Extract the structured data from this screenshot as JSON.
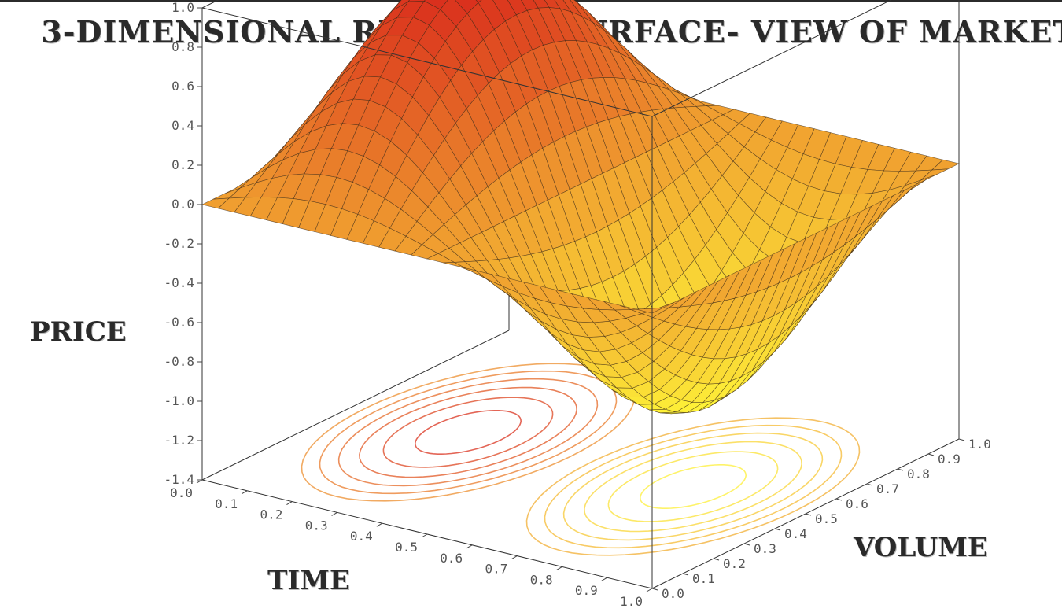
{
  "chart_data": {
    "type": "surface",
    "title": "3-DIMENSIONAL RESPONSE SURFACE- VIEW OF MARKET",
    "xlabel": "TIME",
    "ylabel": "VOLUME",
    "zlabel": "PRICE",
    "xlim": [
      0.0,
      1.0
    ],
    "ylim": [
      0.0,
      1.0
    ],
    "zlim": [
      -1.4,
      1.0
    ],
    "x_ticks": [
      "0.0",
      "0.1",
      "0.2",
      "0.3",
      "0.4",
      "0.5",
      "0.6",
      "0.7",
      "0.8",
      "0.9",
      "1.0"
    ],
    "y_ticks": [
      "0.0",
      "0.1",
      "0.2",
      "0.3",
      "0.4",
      "0.5",
      "0.6",
      "0.7",
      "0.8",
      "0.9",
      "1.0"
    ],
    "z_ticks": [
      "1.0",
      "0.8",
      "0.6",
      "0.4",
      "0.2",
      "0.0",
      "-0.2",
      "-0.4",
      "-0.6",
      "-0.8",
      "-1.0",
      "-1.2",
      "-1.4"
    ],
    "surface": {
      "function": "z = sin(2*pi*x) * sin(pi*y)",
      "grid_x_steps": 28,
      "grid_y_steps": 28,
      "peak": {
        "x": 0.25,
        "y": 0.5,
        "z": 1.0
      },
      "trough": {
        "x": 0.75,
        "y": 0.5,
        "z": -1.0
      }
    },
    "contours": {
      "plane_z": -1.4,
      "levels": [
        -0.9,
        -0.75,
        -0.6,
        -0.45,
        -0.3,
        -0.15,
        0.15,
        0.3,
        0.45,
        0.6,
        0.75,
        0.9
      ]
    },
    "colors": {
      "high": "#d8261b",
      "mid": "#f0a030",
      "low": "#fff838",
      "box": "#333333"
    },
    "grid": false
  }
}
